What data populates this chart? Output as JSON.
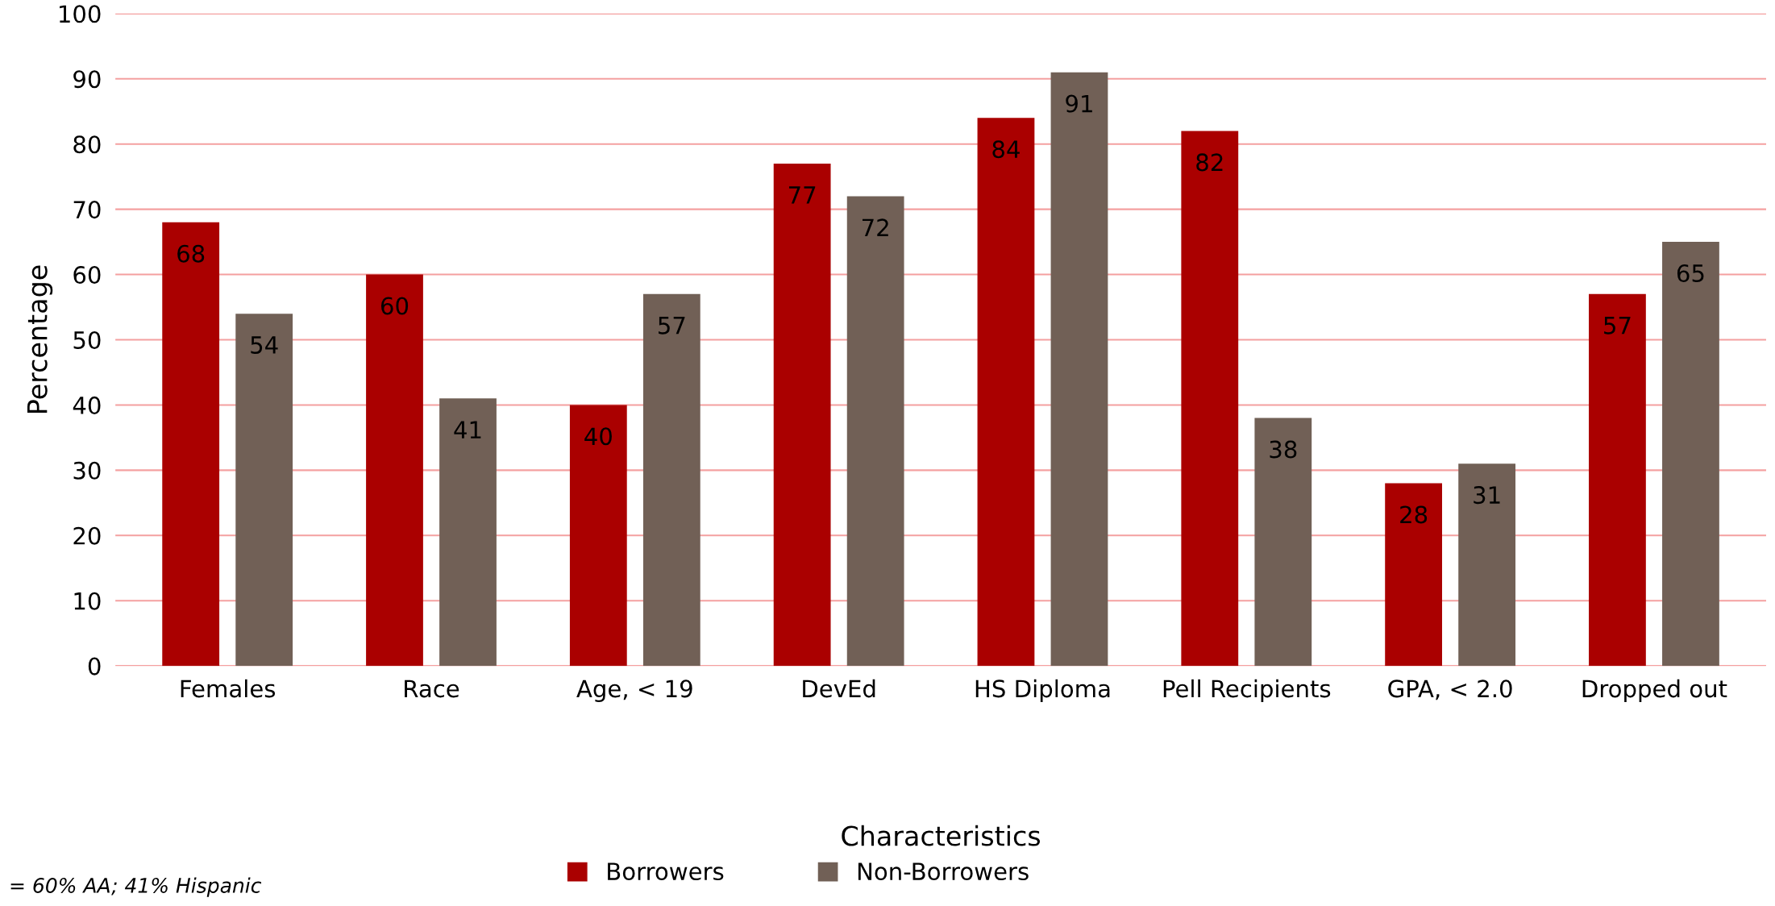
{
  "chart_data": {
    "type": "bar",
    "xlabel": "Characteristics",
    "ylabel": "Percentage",
    "categories": [
      "Females",
      "Race",
      "Age, < 19",
      "DevEd",
      "HS Diploma",
      "Pell Recipients",
      "GPA, < 2.0",
      "Dropped out"
    ],
    "series": [
      {
        "name": "Borrowers",
        "color": "#aa0000",
        "values": [
          68,
          60,
          40,
          77,
          84,
          82,
          28,
          57
        ]
      },
      {
        "name": "Non-Borrowers",
        "color": "#716056",
        "values": [
          54,
          41,
          57,
          72,
          91,
          38,
          31,
          65
        ]
      }
    ],
    "ylim": [
      0,
      100
    ],
    "yticks": [
      0,
      10,
      20,
      30,
      40,
      50,
      60,
      70,
      80,
      90,
      100
    ],
    "grid": "y",
    "legend": "bottom",
    "data_labels": true,
    "annotations": [
      "= 60% AA; 41% Hispanic"
    ]
  }
}
